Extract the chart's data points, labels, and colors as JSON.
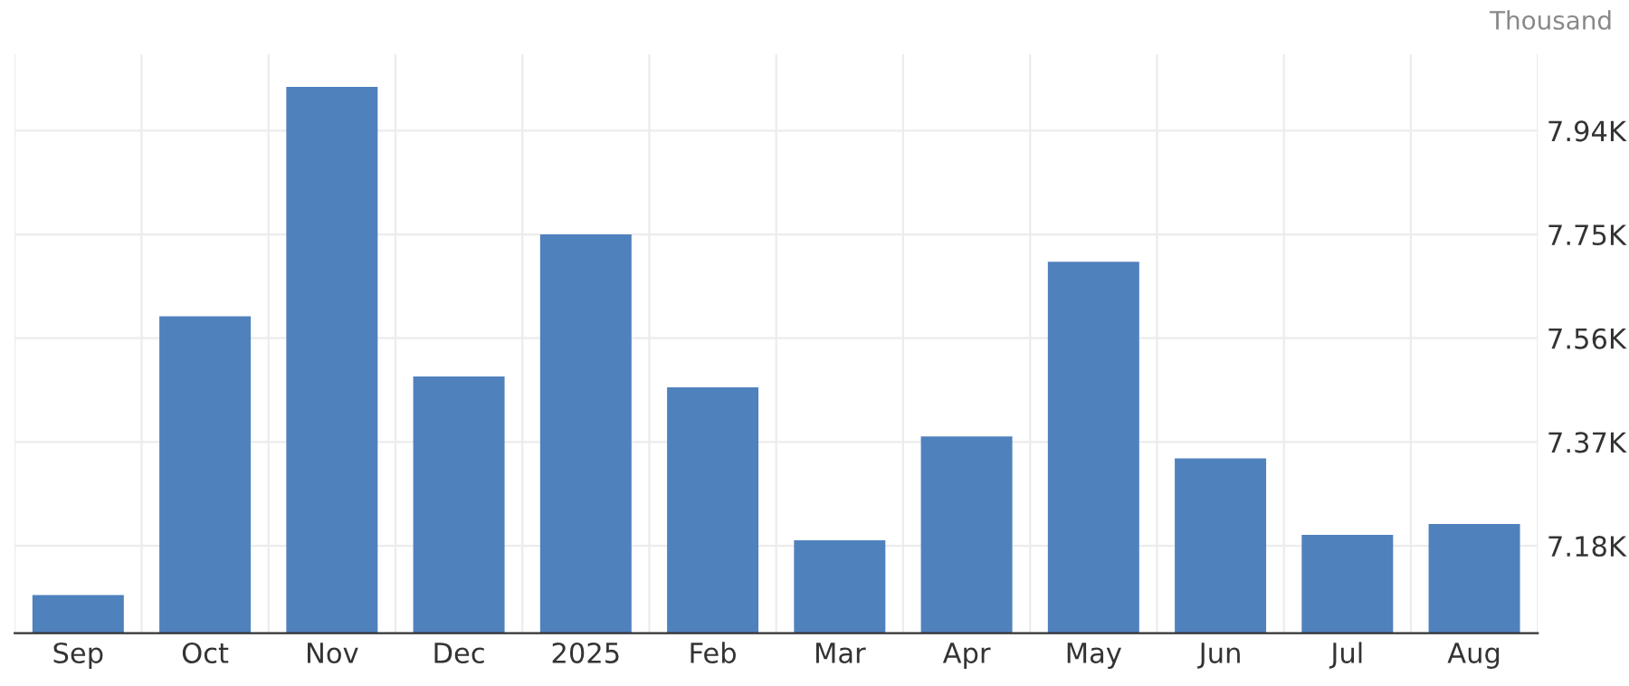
{
  "chart_data": {
    "type": "bar",
    "categories": [
      "Sep",
      "Oct",
      "Nov",
      "Dec",
      "2025",
      "Feb",
      "Mar",
      "Apr",
      "May",
      "Jun",
      "Jul",
      "Aug"
    ],
    "values": [
      7.09,
      7.6,
      8.02,
      7.49,
      7.75,
      7.47,
      7.19,
      7.38,
      7.7,
      7.34,
      7.2,
      7.22
    ],
    "color": "#4f81bd",
    "ylim": [
      7.02,
      8.08
    ],
    "yticks": [
      {
        "value": 7.18,
        "label": "7.18K"
      },
      {
        "value": 7.37,
        "label": "7.37K"
      },
      {
        "value": 7.56,
        "label": "7.56K"
      },
      {
        "value": 7.75,
        "label": "7.75K"
      },
      {
        "value": 7.94,
        "label": "7.94K"
      }
    ],
    "grid": true,
    "annotations": [
      "Thousand"
    ]
  }
}
